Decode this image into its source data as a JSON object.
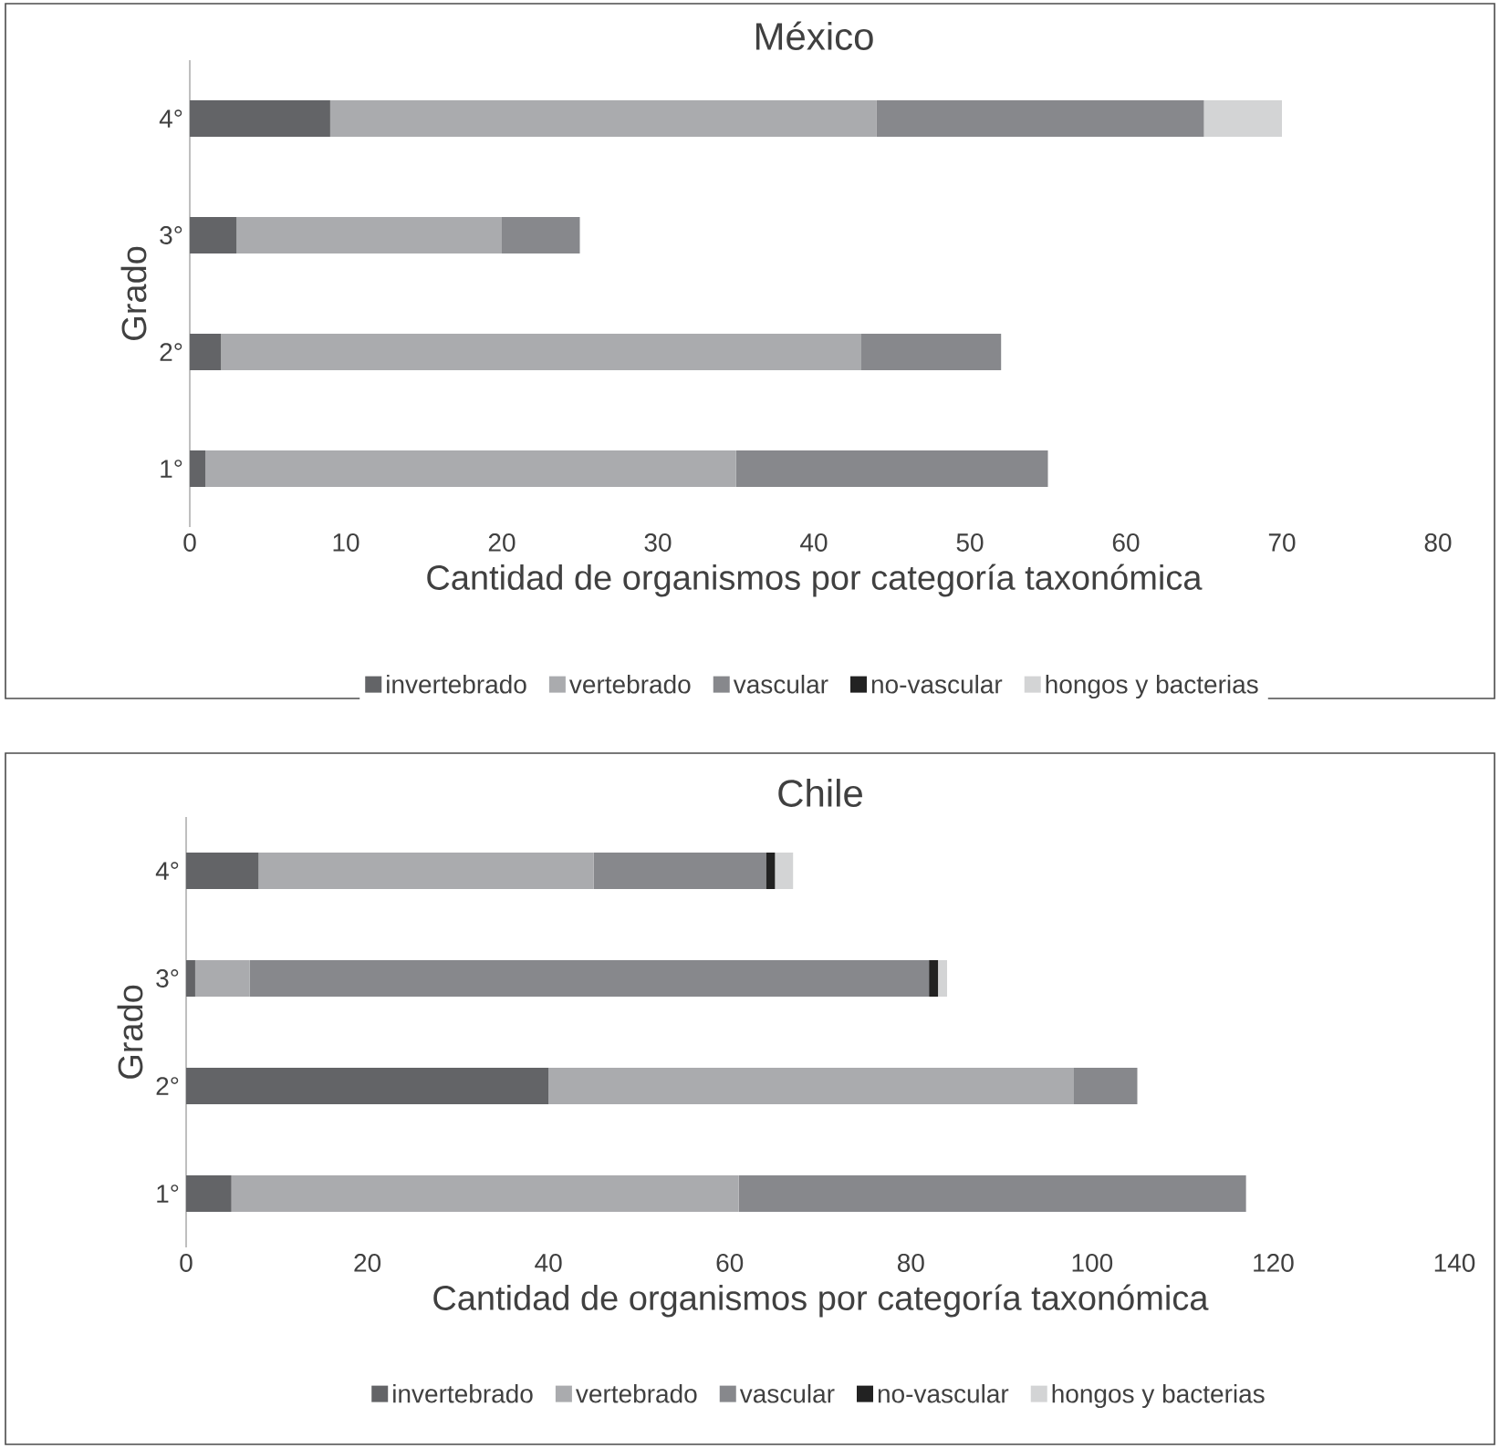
{
  "chart_data": [
    {
      "type": "bar",
      "orientation": "horizontal",
      "stacked": true,
      "title": "México",
      "xlabel": "Cantidad de organismos por categoría taxonómica",
      "ylabel": "Grado",
      "categories": [
        "4°",
        "3°",
        "2°",
        "1°"
      ],
      "xlim": [
        0,
        80
      ],
      "xticks": [
        0,
        10,
        20,
        30,
        40,
        50,
        60,
        70,
        80
      ],
      "legend": "bottom",
      "grid": false,
      "series": [
        {
          "name": "invertebrado",
          "color": "#636467",
          "values": [
            9,
            3,
            2,
            1
          ]
        },
        {
          "name": "vertebrado",
          "color": "#aaabae",
          "values": [
            35,
            17,
            41,
            34
          ]
        },
        {
          "name": "vascular",
          "color": "#87888c",
          "values": [
            21,
            5,
            9,
            20
          ]
        },
        {
          "name": "no-vascular",
          "color": "#222222",
          "values": [
            0,
            0,
            0,
            0
          ]
        },
        {
          "name": "hongos y bacterias",
          "color": "#d3d4d5",
          "values": [
            5,
            0,
            0,
            0
          ]
        }
      ]
    },
    {
      "type": "bar",
      "orientation": "horizontal",
      "stacked": true,
      "title": "Chile",
      "xlabel": "Cantidad de organismos por categoría taxonómica",
      "ylabel": "Grado",
      "categories": [
        "4°",
        "3°",
        "2°",
        "1°"
      ],
      "xlim": [
        0,
        140
      ],
      "xticks": [
        0,
        20,
        40,
        60,
        80,
        100,
        120,
        140
      ],
      "legend": "bottom",
      "grid": false,
      "series": [
        {
          "name": "invertebrado",
          "color": "#636467",
          "values": [
            8,
            1,
            40,
            5
          ]
        },
        {
          "name": "vertebrado",
          "color": "#aaabae",
          "values": [
            37,
            6,
            58,
            56
          ]
        },
        {
          "name": "vascular",
          "color": "#87888c",
          "values": [
            19,
            75,
            7,
            56
          ]
        },
        {
          "name": "no-vascular",
          "color": "#222222",
          "values": [
            1,
            1,
            0,
            0
          ]
        },
        {
          "name": "hongos y bacterias",
          "color": "#d3d4d5",
          "values": [
            2,
            1,
            0,
            0
          ]
        }
      ]
    }
  ]
}
